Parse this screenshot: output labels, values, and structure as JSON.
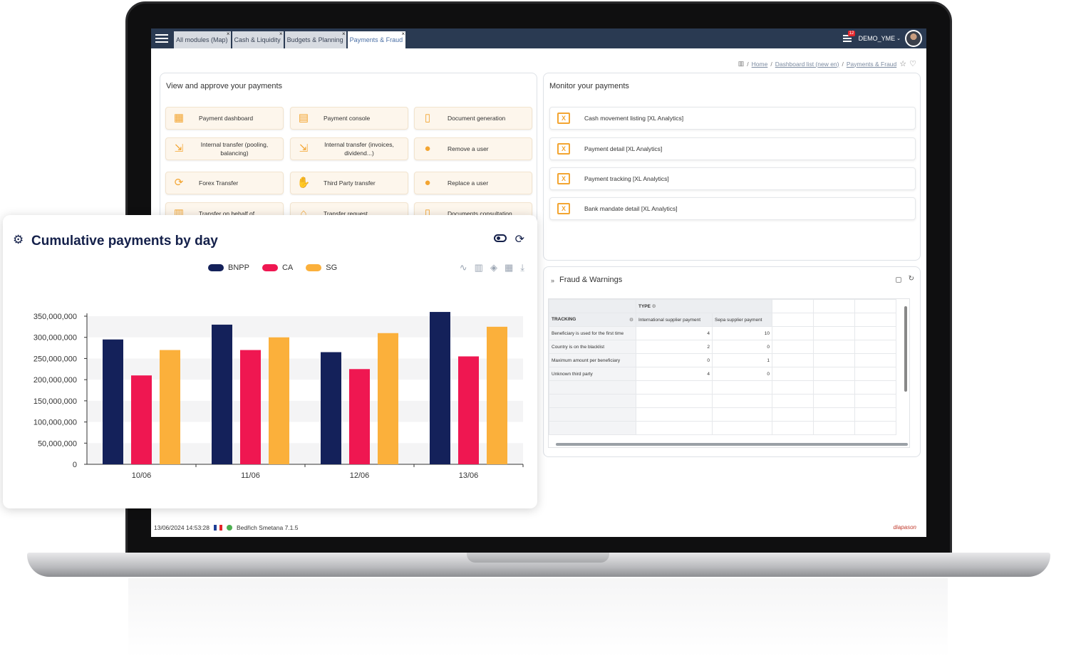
{
  "tabs": [
    {
      "label": "All modules (Map)",
      "active": false
    },
    {
      "label": "Cash & Liquidity",
      "active": false
    },
    {
      "label": "Budgets & Planning",
      "active": false
    },
    {
      "label": "Payments & Fraud",
      "active": true
    }
  ],
  "user": {
    "name": "DEMO_YME",
    "notifications": "12"
  },
  "breadcrumb": {
    "home": "Home",
    "dashboard": "Dashboard list (new en)",
    "current": "Payments & Fraud"
  },
  "approve_panel": {
    "title": "View and approve your payments",
    "actions": [
      {
        "label": "Payment dashboard",
        "icon": "dashboard-icon"
      },
      {
        "label": "Payment console",
        "icon": "console-icon"
      },
      {
        "label": "Document generation",
        "icon": "document-icon"
      },
      {
        "label": "Internal transfer (pooling, balancing)",
        "icon": "transfer-icon"
      },
      {
        "label": "Internal transfer (invoices, dividend...)",
        "icon": "transfer-icon"
      },
      {
        "label": "Remove a user",
        "icon": "user-icon"
      },
      {
        "label": "Forex Transfer",
        "icon": "forex-icon"
      },
      {
        "label": "Third Party transfer",
        "icon": "hand-icon"
      },
      {
        "label": "Replace a user",
        "icon": "user-icon"
      },
      {
        "label": "Transfer on behalf of",
        "icon": "building-icon"
      },
      {
        "label": "Transfer request",
        "icon": "bank-icon"
      },
      {
        "label": "Documents consultation",
        "icon": "document-icon"
      }
    ]
  },
  "monitor_panel": {
    "title": "Monitor your payments",
    "items": [
      {
        "label": "Cash movement listing [XL Analytics]"
      },
      {
        "label": "Payment detail [XL Analytics]"
      },
      {
        "label": "Payment tracking [XL Analytics]"
      },
      {
        "label": "Bank mandate detail [XL Analytics]"
      }
    ]
  },
  "fraud_panel": {
    "title": "Fraud & Warnings",
    "type_header": "TYPE",
    "tracking_header": "TRACKING",
    "columns": [
      "International supplier payment",
      "Sepa supplier payment"
    ],
    "rows": [
      {
        "label": "Beneficiary is used for the first time",
        "values": [
          "4",
          "10"
        ]
      },
      {
        "label": "Country is on the blacklist",
        "values": [
          "2",
          "0"
        ]
      },
      {
        "label": "Maximum amount per beneficiary",
        "values": [
          "0",
          "1"
        ]
      },
      {
        "label": "Unknown third party",
        "values": [
          "4",
          "0"
        ]
      }
    ]
  },
  "footer": {
    "datetime": "13/06/2024 14:53:28",
    "version": "Bedřich Smetana 7.1.5",
    "logo": "diapason"
  },
  "chart_card": {
    "title": "Cumulative payments by day"
  },
  "chart_data": {
    "type": "bar",
    "title": "Cumulative payments by day",
    "categories": [
      "10/06",
      "11/06",
      "12/06",
      "13/06"
    ],
    "series": [
      {
        "name": "BNPP",
        "color": "#14215a",
        "values": [
          295000000,
          330000000,
          265000000,
          360000000
        ]
      },
      {
        "name": "CA",
        "color": "#ef1751",
        "values": [
          210000000,
          270000000,
          225000000,
          255000000
        ]
      },
      {
        "name": "SG",
        "color": "#fbb03b",
        "values": [
          270000000,
          300000000,
          310000000,
          325000000
        ]
      }
    ],
    "ylim": [
      0,
      350000000
    ],
    "yticks": [
      "0",
      "50,000,000",
      "100,000,000",
      "150,000,000",
      "200,000,000",
      "250,000,000",
      "300,000,000",
      "350,000,000"
    ],
    "legend": "top-center",
    "grid": "alternating bands"
  }
}
